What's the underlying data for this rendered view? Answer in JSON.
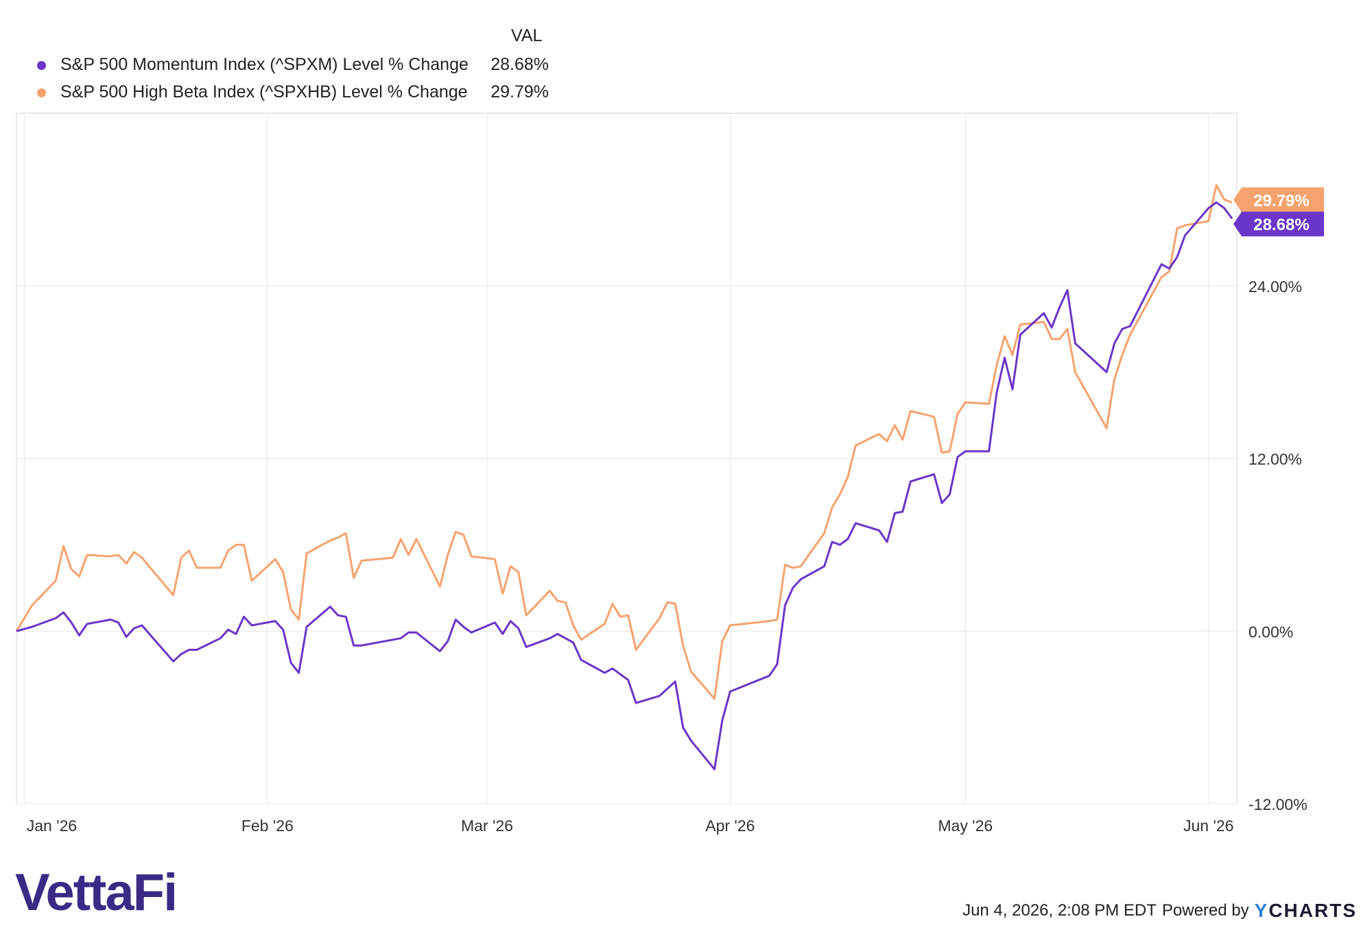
{
  "legend": {
    "header": "VAL",
    "items": [
      {
        "name": "S&P 500 Momentum Index (^SPXM) Level % Change",
        "value": "28.68%",
        "color": "#6a35c9"
      },
      {
        "name": "S&P 500 High Beta Index (^SPXHB) Level % Change",
        "value": "29.79%",
        "color": "#f6a26e"
      }
    ]
  },
  "footer": {
    "logo_text": "VettaFi",
    "timestamp": "Jun 4, 2026, 2:08 PM EDT",
    "powered_by": "Powered by",
    "brand_y": "Y",
    "brand_rest": "CHARTS"
  },
  "chart_data": {
    "type": "line",
    "x_tick_labels": [
      "Jan '26",
      "Feb '26",
      "Mar '26",
      "Apr '26",
      "May '26",
      "Jun '26"
    ],
    "y_tick_labels": [
      "24.00%",
      "12.00%",
      "0.00%",
      "-12.00%"
    ],
    "ylim": [
      -12,
      36
    ],
    "grid": true,
    "legend_position": "top-left",
    "x_start": "2025-12-31",
    "x_end": "2026-06-04",
    "end_labels": [
      "29.79%",
      "28.68%"
    ],
    "series": [
      {
        "name": "S&P 500 Momentum Index (^SPXM) Level % Change",
        "color": "#6a35c9",
        "points": [
          [
            "2025-12-31",
            0.0
          ],
          [
            "2026-01-02",
            0.3
          ],
          [
            "2026-01-05",
            0.9
          ],
          [
            "2026-01-06",
            1.3
          ],
          [
            "2026-01-07",
            0.6
          ],
          [
            "2026-01-08",
            -0.3
          ],
          [
            "2026-01-09",
            0.5
          ],
          [
            "2026-01-12",
            0.8
          ],
          [
            "2026-01-13",
            0.6
          ],
          [
            "2026-01-14",
            -0.4
          ],
          [
            "2026-01-15",
            0.2
          ],
          [
            "2026-01-16",
            0.4
          ],
          [
            "2026-01-20",
            -2.1
          ],
          [
            "2026-01-21",
            -1.6
          ],
          [
            "2026-01-22",
            -1.3
          ],
          [
            "2026-01-23",
            -1.3
          ],
          [
            "2026-01-26",
            -0.5
          ],
          [
            "2026-01-27",
            0.1
          ],
          [
            "2026-01-28",
            -0.2
          ],
          [
            "2026-01-29",
            1.0
          ],
          [
            "2026-01-30",
            0.4
          ],
          [
            "2026-02-02",
            0.7
          ],
          [
            "2026-02-03",
            0.1
          ],
          [
            "2026-02-04",
            -2.2
          ],
          [
            "2026-02-05",
            -2.9
          ],
          [
            "2026-02-06",
            0.3
          ],
          [
            "2026-02-09",
            1.7
          ],
          [
            "2026-02-10",
            1.1
          ],
          [
            "2026-02-11",
            1.0
          ],
          [
            "2026-02-12",
            -1.0
          ],
          [
            "2026-02-13",
            -1.0
          ],
          [
            "2026-02-17",
            -0.6
          ],
          [
            "2026-02-18",
            -0.5
          ],
          [
            "2026-02-19",
            -0.1
          ],
          [
            "2026-02-20",
            -0.1
          ],
          [
            "2026-02-23",
            -1.4
          ],
          [
            "2026-02-24",
            -0.7
          ],
          [
            "2026-02-25",
            0.8
          ],
          [
            "2026-02-26",
            0.3
          ],
          [
            "2026-02-27",
            -0.1
          ],
          [
            "2026-03-02",
            0.6
          ],
          [
            "2026-03-03",
            -0.2
          ],
          [
            "2026-03-04",
            0.7
          ],
          [
            "2026-03-05",
            0.2
          ],
          [
            "2026-03-06",
            -1.1
          ],
          [
            "2026-03-09",
            -0.5
          ],
          [
            "2026-03-10",
            -0.2
          ],
          [
            "2026-03-11",
            -0.5
          ],
          [
            "2026-03-12",
            -0.8
          ],
          [
            "2026-03-13",
            -2.0
          ],
          [
            "2026-03-16",
            -2.9
          ],
          [
            "2026-03-17",
            -2.6
          ],
          [
            "2026-03-18",
            -3.0
          ],
          [
            "2026-03-19",
            -3.4
          ],
          [
            "2026-03-20",
            -5.0
          ],
          [
            "2026-03-23",
            -4.5
          ],
          [
            "2026-03-24",
            -4.0
          ],
          [
            "2026-03-25",
            -3.5
          ],
          [
            "2026-03-26",
            -6.7
          ],
          [
            "2026-03-27",
            -7.6
          ],
          [
            "2026-03-30",
            -9.6
          ],
          [
            "2026-03-31",
            -6.2
          ],
          [
            "2026-04-01",
            -4.2
          ],
          [
            "2026-04-06",
            -3.1
          ],
          [
            "2026-04-07",
            -2.3
          ],
          [
            "2026-04-08",
            1.8
          ],
          [
            "2026-04-09",
            3.0
          ],
          [
            "2026-04-10",
            3.6
          ],
          [
            "2026-04-13",
            4.5
          ],
          [
            "2026-04-14",
            6.2
          ],
          [
            "2026-04-15",
            6.0
          ],
          [
            "2026-04-16",
            6.4
          ],
          [
            "2026-04-17",
            7.5
          ],
          [
            "2026-04-20",
            7.0
          ],
          [
            "2026-04-21",
            6.2
          ],
          [
            "2026-04-22",
            8.2
          ],
          [
            "2026-04-23",
            8.3
          ],
          [
            "2026-04-24",
            10.4
          ],
          [
            "2026-04-27",
            10.9
          ],
          [
            "2026-04-28",
            8.9
          ],
          [
            "2026-04-29",
            9.5
          ],
          [
            "2026-04-30",
            12.1
          ],
          [
            "2026-05-01",
            12.5
          ],
          [
            "2026-05-04",
            12.5
          ],
          [
            "2026-05-05",
            16.6
          ],
          [
            "2026-05-06",
            19.0
          ],
          [
            "2026-05-07",
            16.8
          ],
          [
            "2026-05-08",
            20.6
          ],
          [
            "2026-05-11",
            22.1
          ],
          [
            "2026-05-12",
            21.1
          ],
          [
            "2026-05-13",
            22.5
          ],
          [
            "2026-05-14",
            23.7
          ],
          [
            "2026-05-15",
            20.0
          ],
          [
            "2026-05-19",
            18.0
          ],
          [
            "2026-05-20",
            20.0
          ],
          [
            "2026-05-21",
            21.0
          ],
          [
            "2026-05-22",
            21.2
          ],
          [
            "2026-05-26",
            25.5
          ],
          [
            "2026-05-27",
            25.2
          ],
          [
            "2026-05-28",
            26.0
          ],
          [
            "2026-05-29",
            27.5
          ],
          [
            "2026-06-01",
            29.4
          ],
          [
            "2026-06-02",
            29.8
          ],
          [
            "2026-06-03",
            29.4
          ],
          [
            "2026-06-04",
            28.68
          ]
        ]
      },
      {
        "name": "S&P 500 High Beta Index (^SPXHB) Level % Change",
        "color": "#f6a26e",
        "points": [
          [
            "2025-12-31",
            0.0
          ],
          [
            "2026-01-02",
            1.8
          ],
          [
            "2026-01-05",
            3.5
          ],
          [
            "2026-01-06",
            5.9
          ],
          [
            "2026-01-07",
            4.3
          ],
          [
            "2026-01-08",
            3.8
          ],
          [
            "2026-01-09",
            5.3
          ],
          [
            "2026-01-12",
            5.2
          ],
          [
            "2026-01-13",
            5.3
          ],
          [
            "2026-01-14",
            4.7
          ],
          [
            "2026-01-15",
            5.5
          ],
          [
            "2026-01-16",
            5.1
          ],
          [
            "2026-01-20",
            2.5
          ],
          [
            "2026-01-21",
            5.1
          ],
          [
            "2026-01-22",
            5.6
          ],
          [
            "2026-01-23",
            4.4
          ],
          [
            "2026-01-26",
            4.4
          ],
          [
            "2026-01-27",
            5.6
          ],
          [
            "2026-01-28",
            6.0
          ],
          [
            "2026-01-29",
            6.0
          ],
          [
            "2026-01-30",
            3.5
          ],
          [
            "2026-02-02",
            5.0
          ],
          [
            "2026-02-03",
            4.1
          ],
          [
            "2026-02-04",
            1.5
          ],
          [
            "2026-02-05",
            0.8
          ],
          [
            "2026-02-06",
            5.4
          ],
          [
            "2026-02-09",
            6.3
          ],
          [
            "2026-02-10",
            6.5
          ],
          [
            "2026-02-11",
            6.8
          ],
          [
            "2026-02-12",
            3.7
          ],
          [
            "2026-02-13",
            4.9
          ],
          [
            "2026-02-17",
            5.1
          ],
          [
            "2026-02-18",
            6.4
          ],
          [
            "2026-02-19",
            5.3
          ],
          [
            "2026-02-20",
            6.4
          ],
          [
            "2026-02-23",
            3.1
          ],
          [
            "2026-02-24",
            5.3
          ],
          [
            "2026-02-25",
            6.9
          ],
          [
            "2026-02-26",
            6.7
          ],
          [
            "2026-02-27",
            5.2
          ],
          [
            "2026-03-02",
            5.0
          ],
          [
            "2026-03-03",
            2.6
          ],
          [
            "2026-03-04",
            4.5
          ],
          [
            "2026-03-05",
            4.1
          ],
          [
            "2026-03-06",
            1.1
          ],
          [
            "2026-03-09",
            2.8
          ],
          [
            "2026-03-10",
            2.1
          ],
          [
            "2026-03-11",
            2.0
          ],
          [
            "2026-03-12",
            0.4
          ],
          [
            "2026-03-13",
            -0.6
          ],
          [
            "2026-03-16",
            0.5
          ],
          [
            "2026-03-17",
            1.9
          ],
          [
            "2026-03-18",
            1.0
          ],
          [
            "2026-03-19",
            1.1
          ],
          [
            "2026-03-20",
            -1.3
          ],
          [
            "2026-03-23",
            0.9
          ],
          [
            "2026-03-24",
            2.0
          ],
          [
            "2026-03-25",
            1.9
          ],
          [
            "2026-03-26",
            -1.0
          ],
          [
            "2026-03-27",
            -2.8
          ],
          [
            "2026-03-30",
            -4.7
          ],
          [
            "2026-03-31",
            -0.7
          ],
          [
            "2026-04-01",
            0.4
          ],
          [
            "2026-04-06",
            0.7
          ],
          [
            "2026-04-07",
            0.8
          ],
          [
            "2026-04-08",
            4.6
          ],
          [
            "2026-04-09",
            4.4
          ],
          [
            "2026-04-10",
            4.5
          ],
          [
            "2026-04-13",
            6.8
          ],
          [
            "2026-04-14",
            8.6
          ],
          [
            "2026-04-15",
            9.5
          ],
          [
            "2026-04-16",
            10.7
          ],
          [
            "2026-04-17",
            12.9
          ],
          [
            "2026-04-20",
            13.7
          ],
          [
            "2026-04-21",
            13.2
          ],
          [
            "2026-04-22",
            14.3
          ],
          [
            "2026-04-23",
            13.3
          ],
          [
            "2026-04-24",
            15.3
          ],
          [
            "2026-04-27",
            14.9
          ],
          [
            "2026-04-28",
            12.4
          ],
          [
            "2026-04-29",
            12.5
          ],
          [
            "2026-04-30",
            15.1
          ],
          [
            "2026-05-01",
            15.9
          ],
          [
            "2026-05-04",
            15.8
          ],
          [
            "2026-05-05",
            18.5
          ],
          [
            "2026-05-06",
            20.5
          ],
          [
            "2026-05-07",
            19.2
          ],
          [
            "2026-05-08",
            21.3
          ],
          [
            "2026-05-11",
            21.5
          ],
          [
            "2026-05-12",
            20.3
          ],
          [
            "2026-05-13",
            20.3
          ],
          [
            "2026-05-14",
            21.0
          ],
          [
            "2026-05-15",
            18.0
          ],
          [
            "2026-05-19",
            14.1
          ],
          [
            "2026-05-20",
            17.5
          ],
          [
            "2026-05-21",
            19.2
          ],
          [
            "2026-05-22",
            20.6
          ],
          [
            "2026-05-26",
            24.6
          ],
          [
            "2026-05-27",
            25.0
          ],
          [
            "2026-05-28",
            28.0
          ],
          [
            "2026-05-29",
            28.2
          ],
          [
            "2026-06-01",
            28.5
          ],
          [
            "2026-06-02",
            31.0
          ],
          [
            "2026-06-03",
            30.0
          ],
          [
            "2026-06-04",
            29.79
          ]
        ]
      }
    ]
  }
}
